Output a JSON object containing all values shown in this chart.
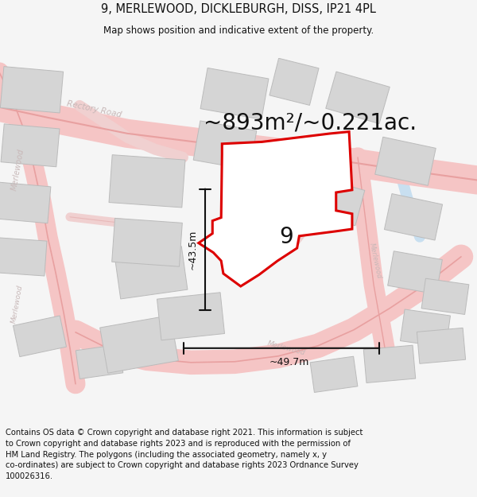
{
  "title": "9, MERLEWOOD, DICKLEBURGH, DISS, IP21 4PL",
  "subtitle": "Map shows position and indicative extent of the property.",
  "area_label": "~893m²/~0.221ac.",
  "number_label": "9",
  "dim_h": "~49.7m",
  "dim_v": "~43.5m",
  "footer": "Contains OS data © Crown copyright and database right 2021. This information is subject to Crown copyright and database rights 2023 and is reproduced with the permission of HM Land Registry. The polygons (including the associated geometry, namely x, y co-ordinates) are subject to Crown copyright and database rights 2023 Ordnance Survey 100026316.",
  "bg_color": "#f5f5f5",
  "map_bg": "#ffffff",
  "road_fill": "#f5c5c5",
  "road_edge": "#e8a0a0",
  "road_blue": "#c8dff0",
  "bld_fill": "#d5d5d5",
  "bld_edge": "#bbbbbb",
  "prop_fill": "#ffffff",
  "prop_edge": "#dd0000",
  "road_text": "#c0b0b0",
  "dim_text": "#111111",
  "title_fs": 10.5,
  "sub_fs": 8.5,
  "area_fs": 20,
  "num_fs": 20,
  "dim_fs": 9,
  "footer_fs": 7.2,
  "road_label_fs": 7
}
